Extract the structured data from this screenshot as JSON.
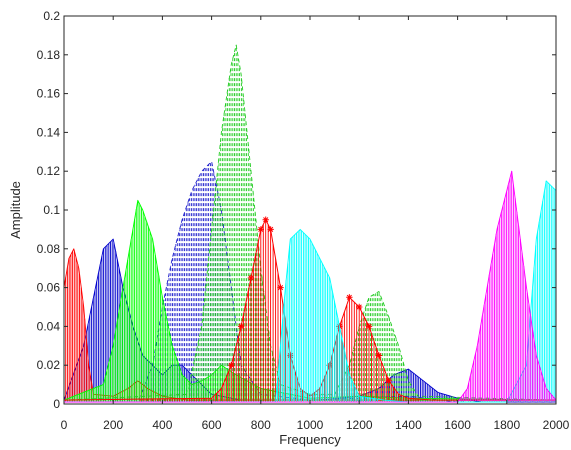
{
  "chart_data": {
    "type": "line",
    "title": "",
    "xlabel": "Frequency",
    "ylabel": "Amplitude",
    "xlim": [
      0,
      2000
    ],
    "ylim": [
      0,
      0.2
    ],
    "xticks": [
      0,
      200,
      400,
      600,
      800,
      1000,
      1200,
      1400,
      1600,
      1800,
      2000
    ],
    "yticks": [
      0,
      0.02,
      0.04,
      0.06,
      0.08,
      0.1,
      0.12,
      0.14,
      0.16,
      0.18,
      0.2
    ],
    "xtick_labels": [
      "0",
      "200",
      "400",
      "600",
      "800",
      "1000",
      "1200",
      "1400",
      "1600",
      "1800",
      "2000"
    ],
    "ytick_labels": [
      "0",
      "0.02",
      "0.04",
      "0.06",
      "0.08",
      "0.1",
      "0.12",
      "0.14",
      "0.16",
      "0.18",
      "0.2"
    ],
    "grid": false,
    "legend": "none",
    "series": [
      {
        "color": "#0000cc",
        "style": "solid",
        "x": [
          0,
          80,
          120,
          160,
          200,
          240,
          280,
          320,
          400,
          440,
          480,
          520,
          560,
          600,
          640,
          680,
          720,
          800,
          880,
          960,
          1040,
          1120,
          1200,
          1280,
          1340,
          1400,
          1460,
          1520,
          1600,
          1700,
          2000
        ],
        "y": [
          0.002,
          0.03,
          0.055,
          0.08,
          0.085,
          0.06,
          0.04,
          0.025,
          0.015,
          0.02,
          0.02,
          0.015,
          0.01,
          0.005,
          0.004,
          0.003,
          0.002,
          0.002,
          0.002,
          0.002,
          0.002,
          0.003,
          0.004,
          0.008,
          0.015,
          0.018,
          0.012,
          0.006,
          0.003,
          0.001,
          0.001
        ]
      },
      {
        "color": "#2020cc",
        "style": "dashed",
        "x": [
          0,
          300,
          360,
          400,
          440,
          480,
          520,
          560,
          600,
          640,
          680,
          720,
          800,
          1000,
          1200,
          1400,
          1600,
          2000
        ],
        "y": [
          0.001,
          0.001,
          0.02,
          0.05,
          0.075,
          0.095,
          0.11,
          0.12,
          0.125,
          0.1,
          0.06,
          0.02,
          0.005,
          0.002,
          0.003,
          0.004,
          0.001,
          0.001
        ]
      },
      {
        "color": "#ff0000",
        "style": "solid",
        "x": [
          0,
          20,
          40,
          60,
          80,
          100,
          120,
          200,
          260,
          300,
          340,
          400,
          500,
          600,
          700,
          2000
        ],
        "y": [
          0.06,
          0.075,
          0.08,
          0.07,
          0.05,
          0.02,
          0.005,
          0.004,
          0.008,
          0.012,
          0.008,
          0.004,
          0.002,
          0.002,
          0.002,
          0.002
        ]
      },
      {
        "color": "#00ff00",
        "style": "solid",
        "x": [
          0,
          160,
          200,
          240,
          280,
          300,
          320,
          360,
          400,
          440,
          480,
          520,
          560,
          600,
          640,
          700,
          800,
          1000,
          1200,
          1400,
          2000
        ],
        "y": [
          0.002,
          0.01,
          0.03,
          0.06,
          0.09,
          0.105,
          0.1,
          0.085,
          0.055,
          0.03,
          0.015,
          0.01,
          0.012,
          0.015,
          0.02,
          0.015,
          0.008,
          0.003,
          0.004,
          0.003,
          0.002
        ]
      },
      {
        "color": "#22cc22",
        "style": "dashed",
        "x": [
          0,
          500,
          560,
          600,
          640,
          680,
          700,
          720,
          760,
          800,
          840,
          880,
          1000,
          1100,
          1160,
          1200,
          1240,
          1280,
          1320,
          1360,
          1400,
          1440,
          2000
        ],
        "y": [
          0.002,
          0.005,
          0.04,
          0.09,
          0.14,
          0.175,
          0.185,
          0.17,
          0.12,
          0.07,
          0.03,
          0.01,
          0.005,
          0.005,
          0.02,
          0.04,
          0.055,
          0.058,
          0.045,
          0.03,
          0.012,
          0.004,
          0.002
        ]
      },
      {
        "color": "#ff0000",
        "style": "star",
        "x": [
          0,
          600,
          640,
          680,
          720,
          760,
          800,
          820,
          840,
          880,
          920,
          960,
          1000,
          1040,
          1080,
          1120,
          1160,
          1200,
          1240,
          1280,
          1320,
          1360,
          1400,
          1500,
          1600,
          1700,
          1800,
          1900,
          2000
        ],
        "y": [
          0.002,
          0.003,
          0.008,
          0.02,
          0.04,
          0.065,
          0.09,
          0.095,
          0.09,
          0.06,
          0.025,
          0.008,
          0.004,
          0.008,
          0.02,
          0.04,
          0.055,
          0.05,
          0.04,
          0.025,
          0.012,
          0.005,
          0.003,
          0.002,
          0.002,
          0.002,
          0.002,
          0.002,
          0.002
        ]
      },
      {
        "color": "#00ffff",
        "style": "solid",
        "x": [
          0,
          860,
          900,
          920,
          960,
          1000,
          1040,
          1080,
          1120,
          1160,
          1200,
          1300,
          1400,
          1500,
          1600,
          1700,
          1800,
          1880,
          1920,
          1960,
          2000
        ],
        "y": [
          0.001,
          0.001,
          0.06,
          0.085,
          0.09,
          0.085,
          0.075,
          0.065,
          0.04,
          0.015,
          0.004,
          0.002,
          0.001,
          0.001,
          0.001,
          0.001,
          0.001,
          0.02,
          0.085,
          0.115,
          0.11
        ]
      },
      {
        "color": "#ff00ff",
        "style": "solid",
        "x": [
          0,
          1300,
          1600,
          1640,
          1680,
          1720,
          1760,
          1800,
          1820,
          1840,
          1880,
          1920,
          1960,
          2000
        ],
        "y": [
          0.001,
          0.001,
          0.001,
          0.008,
          0.03,
          0.06,
          0.09,
          0.11,
          0.12,
          0.1,
          0.06,
          0.025,
          0.008,
          0.002
        ]
      }
    ]
  }
}
